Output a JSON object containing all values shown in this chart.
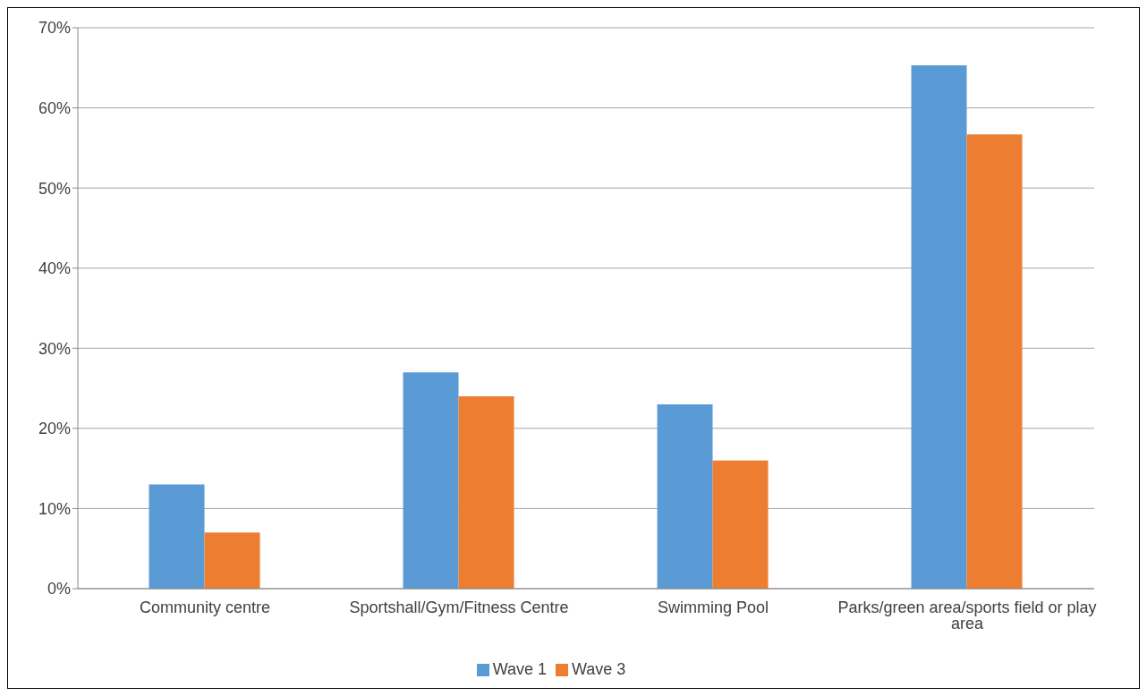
{
  "chart_data": {
    "type": "bar",
    "categories": [
      "Community centre",
      "Sportshall/Gym/Fitness Centre",
      "Swimming Pool",
      "Parks/green area/sports field or play area"
    ],
    "series": [
      {
        "name": "Wave 1",
        "color": "#5b9bd5",
        "values": [
          13,
          27,
          23,
          65.3
        ]
      },
      {
        "name": "Wave 3",
        "color": "#ed7d31",
        "values": [
          7,
          24,
          16,
          56.7
        ]
      }
    ],
    "ylim": [
      0,
      70
    ],
    "yticks": [
      {
        "value": 0,
        "label": "0%"
      },
      {
        "value": 10,
        "label": "10%"
      },
      {
        "value": 20,
        "label": "20%"
      },
      {
        "value": 30,
        "label": "30%"
      },
      {
        "value": 40,
        "label": "40%"
      },
      {
        "value": 50,
        "label": "50%"
      },
      {
        "value": 60,
        "label": "60%"
      },
      {
        "value": 70,
        "label": "70%"
      }
    ],
    "grid": "y",
    "legend": "bottom"
  }
}
